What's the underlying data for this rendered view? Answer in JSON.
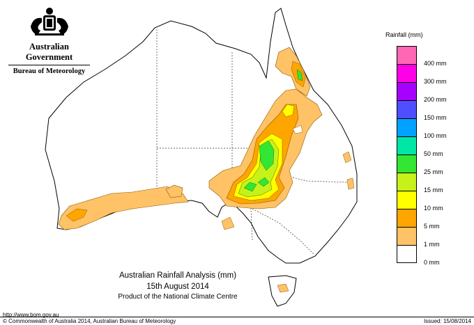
{
  "header": {
    "government": "Australian Government",
    "bureau": "Bureau of Meteorology"
  },
  "title": {
    "line1": "Australian Rainfall Analysis (mm)",
    "line2": "15th August 2014",
    "line3": "Product of the National Climate Centre"
  },
  "footer": {
    "url": "http://www.bom.gov.au",
    "copyright": "© Commonwealth of Australia 2014, Australian Bureau of Meteorology",
    "issued": "Issued: 15/08/2014"
  },
  "legend": {
    "title": "Rainfall (mm)",
    "items": [
      {
        "label": "400 mm",
        "color": "#ff66b3"
      },
      {
        "label": "300 mm",
        "color": "#ff00e6"
      },
      {
        "label": "200 mm",
        "color": "#a600ff"
      },
      {
        "label": "150 mm",
        "color": "#4f4fff"
      },
      {
        "label": "100 mm",
        "color": "#00a2ff"
      },
      {
        "label": "50 mm",
        "color": "#00e6a6"
      },
      {
        "label": "25 mm",
        "color": "#33e633"
      },
      {
        "label": "15 mm",
        "color": "#c6f21a"
      },
      {
        "label": "10 mm",
        "color": "#ffff00"
      },
      {
        "label": "5 mm",
        "color": "#ffa500"
      },
      {
        "label": "1 mm",
        "color": "#ffc266"
      },
      {
        "label": "0 mm",
        "color": "#ffffff"
      }
    ]
  }
}
